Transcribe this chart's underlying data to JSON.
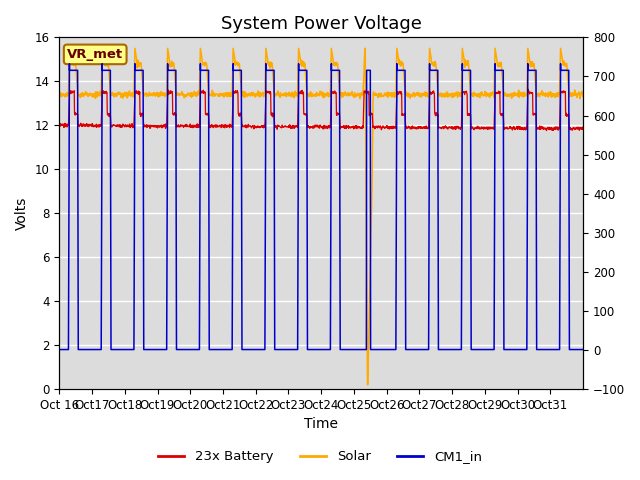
{
  "title": "System Power Voltage",
  "xlabel": "Time",
  "ylabel_left": "Volts",
  "ylim_left": [
    0,
    16
  ],
  "ylim_right": [
    -100,
    800
  ],
  "annotation": "VR_met",
  "x_tick_labels": [
    "Oct 16",
    "Oct 17",
    "Oct 18",
    "Oct 19",
    "Oct 20",
    "Oct 21",
    "Oct 22",
    "Oct 23",
    "Oct 24",
    "Oct 25",
    "Oct 26",
    "Oct 27",
    "Oct 28",
    "Oct 29",
    "Oct 30",
    "Oct 31"
  ],
  "legend_labels": [
    "23x Battery",
    "Solar",
    "CM1_in"
  ],
  "colors": {
    "battery": "#dd0000",
    "solar": "#ffaa00",
    "cm1": "#0000cc",
    "background": "#dcdcdc",
    "annotation_bg": "#ffff88",
    "annotation_border": "#aa6600",
    "annotation_text": "#660000"
  },
  "title_fontsize": 13,
  "axis_fontsize": 10,
  "tick_fontsize": 8.5
}
